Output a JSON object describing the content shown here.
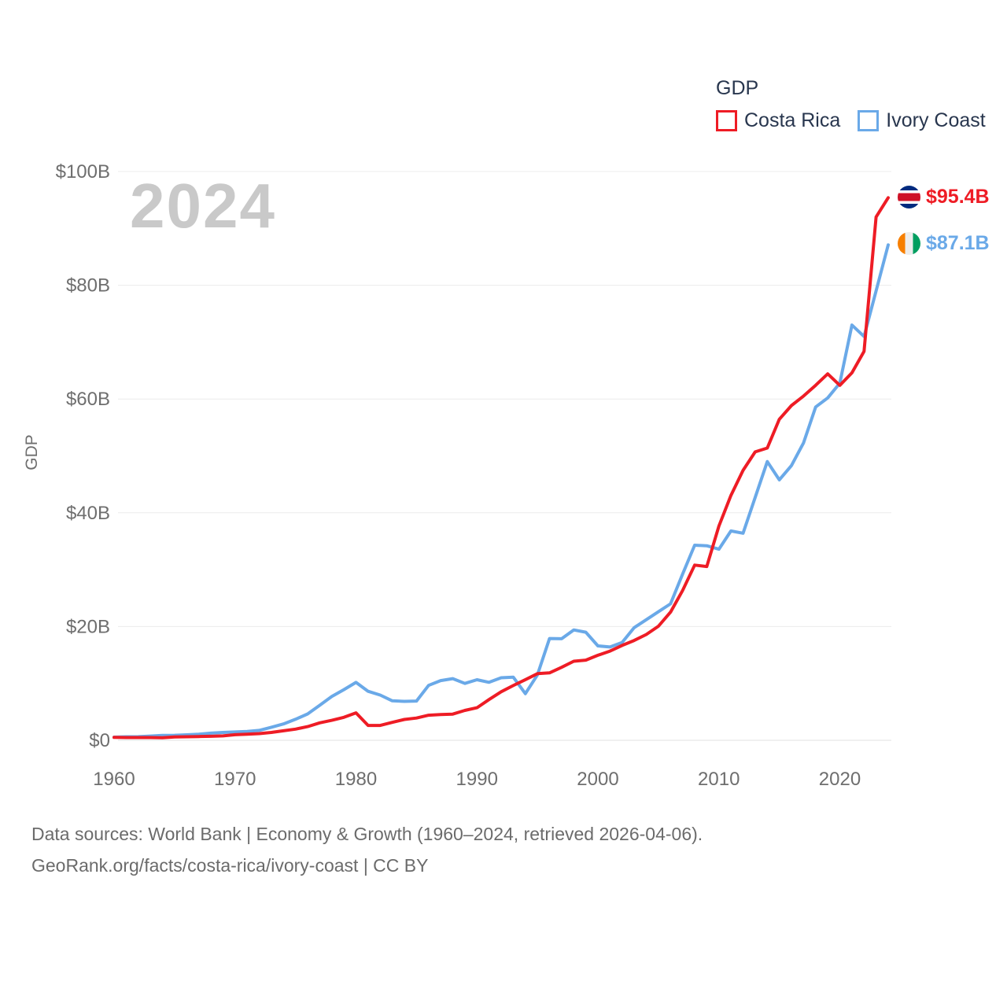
{
  "watermark": "2024",
  "legend": {
    "title": "GDP",
    "series": [
      {
        "label": "Costa Rica",
        "color": "#ee1c25"
      },
      {
        "label": "Ivory Coast",
        "color": "#6aa9e8"
      }
    ]
  },
  "y_axis": {
    "title": "GDP",
    "ticks": [
      "$0",
      "$20B",
      "$40B",
      "$60B",
      "$80B",
      "$100B"
    ],
    "tick_values": [
      0,
      20,
      40,
      60,
      80,
      100
    ]
  },
  "x_axis": {
    "ticks": [
      1960,
      1970,
      1980,
      1990,
      2000,
      2010,
      2020
    ]
  },
  "end_labels": [
    {
      "series": "Costa Rica",
      "value_label": "$95.4B",
      "flag": "costa-rica-flag-icon",
      "color": "#ee1c25"
    },
    {
      "series": "Ivory Coast",
      "value_label": "$87.1B",
      "flag": "ivory-coast-flag-icon",
      "color": "#6aa9e8"
    }
  ],
  "footer": {
    "line1": "Data sources: World Bank | Economy & Growth (1960–2024, retrieved 2026-04-06).",
    "line2": "GeoRank.org/facts/costa-rica/ivory-coast | CC BY"
  },
  "chart_data": {
    "type": "line",
    "title": "GDP",
    "ylabel": "GDP",
    "ylim": [
      0,
      100
    ],
    "xlim": [
      1960,
      2024
    ],
    "grid": "horizontal",
    "legend_position": "top-right",
    "x": [
      1960,
      1961,
      1962,
      1963,
      1964,
      1965,
      1966,
      1967,
      1968,
      1969,
      1970,
      1971,
      1972,
      1973,
      1974,
      1975,
      1976,
      1977,
      1978,
      1979,
      1980,
      1981,
      1982,
      1983,
      1984,
      1985,
      1986,
      1987,
      1988,
      1989,
      1990,
      1991,
      1992,
      1993,
      1994,
      1995,
      1996,
      1997,
      1998,
      1999,
      2000,
      2001,
      2002,
      2003,
      2004,
      2005,
      2006,
      2007,
      2008,
      2009,
      2010,
      2011,
      2012,
      2013,
      2014,
      2015,
      2016,
      2017,
      2018,
      2019,
      2020,
      2021,
      2022,
      2023,
      2024
    ],
    "series": [
      {
        "name": "Costa Rica",
        "color": "#ee1c25",
        "unit": "billion USD",
        "final_value_label": "$95.4B",
        "values": [
          0.51,
          0.49,
          0.48,
          0.48,
          0.46,
          0.59,
          0.62,
          0.66,
          0.71,
          0.78,
          0.98,
          1.08,
          1.18,
          1.39,
          1.67,
          1.96,
          2.41,
          3.07,
          3.52,
          4.04,
          4.83,
          2.62,
          2.61,
          3.15,
          3.66,
          3.92,
          4.41,
          4.53,
          4.6,
          5.26,
          5.72,
          7.17,
          8.54,
          9.62,
          10.67,
          11.72,
          11.86,
          12.83,
          13.9,
          14.1,
          14.95,
          15.68,
          16.68,
          17.55,
          18.6,
          20.05,
          22.53,
          26.32,
          30.8,
          30.56,
          37.66,
          43.05,
          47.45,
          50.71,
          51.39,
          56.44,
          58.85,
          60.52,
          62.42,
          64.42,
          62.41,
          64.61,
          68.38,
          92.0,
          95.4
        ]
      },
      {
        "name": "Ivory Coast",
        "color": "#6aa9e8",
        "unit": "billion USD",
        "final_value_label": "$87.1B",
        "values": [
          0.55,
          0.62,
          0.64,
          0.75,
          0.87,
          0.89,
          0.97,
          1.08,
          1.26,
          1.39,
          1.47,
          1.55,
          1.74,
          2.29,
          2.88,
          3.69,
          4.63,
          6.15,
          7.72,
          8.91,
          10.18,
          8.61,
          7.95,
          6.95,
          6.85,
          6.9,
          9.65,
          10.5,
          10.85,
          10.0,
          10.65,
          10.2,
          11.0,
          11.1,
          8.2,
          11.5,
          17.9,
          17.85,
          19.4,
          19.0,
          16.6,
          16.4,
          17.2,
          19.8,
          21.2,
          22.6,
          24.0,
          29.2,
          34.3,
          34.2,
          33.6,
          36.8,
          36.4,
          42.7,
          49.0,
          45.8,
          48.3,
          52.3,
          58.6,
          60.2,
          62.8,
          73.0,
          71.0,
          79.0,
          87.1
        ]
      }
    ]
  }
}
